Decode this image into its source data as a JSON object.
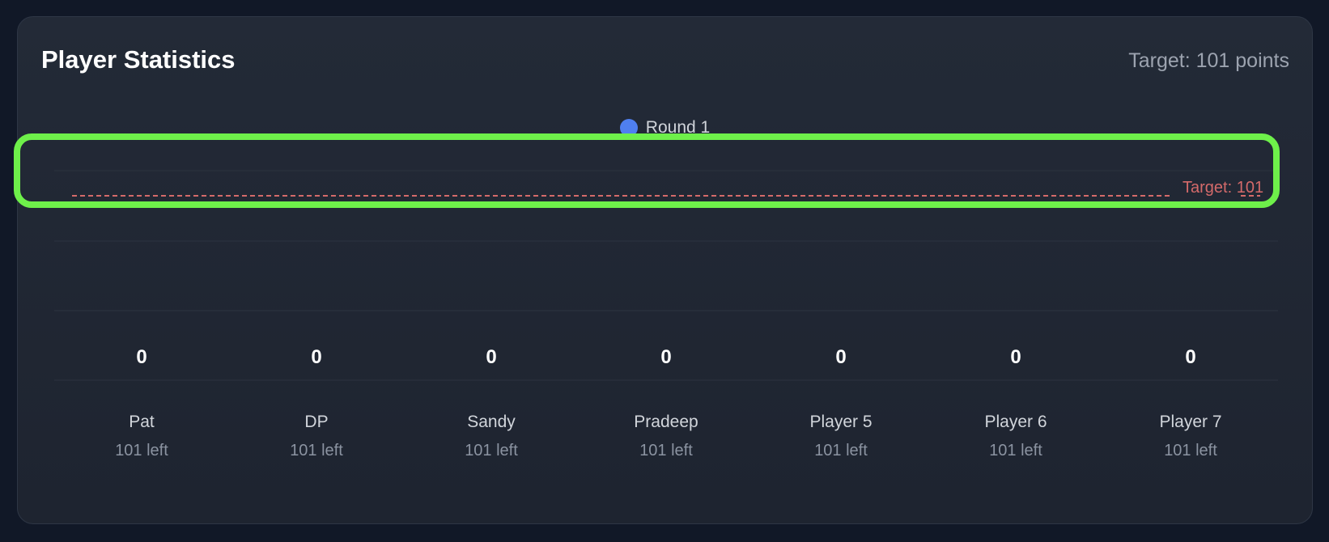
{
  "header": {
    "title": "Player Statistics",
    "target_text": "Target: 101 points"
  },
  "colors": {
    "round1": "#4f7ff0",
    "target_line": "#d46a6a",
    "highlight": "#6ef04a"
  },
  "chart_data": {
    "type": "bar",
    "categories": [
      "Pat",
      "DP",
      "Sandy",
      "Pradeep",
      "Player 5",
      "Player 6",
      "Player 7"
    ],
    "series": [
      {
        "name": "Round 1",
        "values": [
          0,
          0,
          0,
          0,
          0,
          0,
          0
        ]
      }
    ],
    "target": 101,
    "target_label": "Target: 101",
    "legend": "top-center",
    "grid": true
  },
  "legend": {
    "items": [
      {
        "label": "Round 1",
        "color": "#4f7ff0"
      }
    ]
  },
  "players": [
    {
      "name": "Pat",
      "score": "0",
      "left": "101 left"
    },
    {
      "name": "DP",
      "score": "0",
      "left": "101 left"
    },
    {
      "name": "Sandy",
      "score": "0",
      "left": "101 left"
    },
    {
      "name": "Pradeep",
      "score": "0",
      "left": "101 left"
    },
    {
      "name": "Player 5",
      "score": "0",
      "left": "101 left"
    },
    {
      "name": "Player 6",
      "score": "0",
      "left": "101 left"
    },
    {
      "name": "Player 7",
      "score": "0",
      "left": "101 left"
    }
  ]
}
